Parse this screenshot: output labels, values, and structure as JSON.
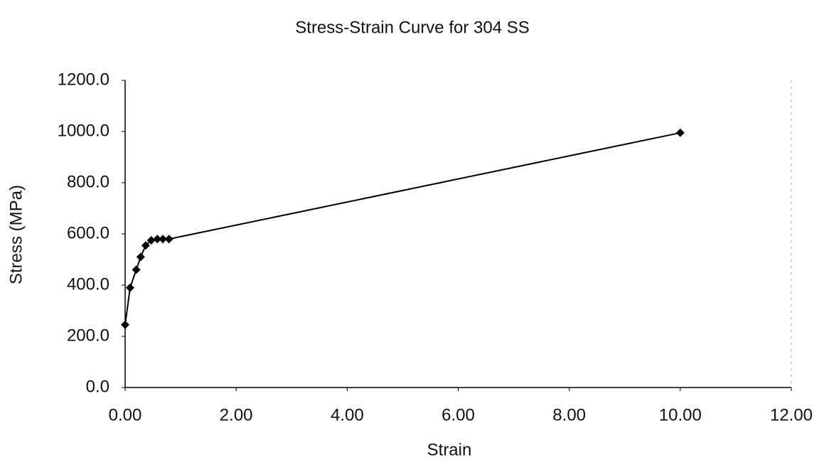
{
  "chart_data": {
    "type": "scatter",
    "title": "Stress-Strain Curve for 304 SS",
    "x_label": "Strain",
    "y_label": "Stress (MPa)",
    "series": [
      {
        "color": "#000000",
        "x": [
          0,
          0.09,
          0.2,
          0.28,
          0.37,
          0.47,
          0.58,
          0.68,
          0.79,
          10.0
        ],
        "values": [
          245,
          390,
          460,
          510,
          555,
          575,
          580,
          580,
          580,
          995
        ]
      }
    ],
    "xlim": [
      0,
      12
    ],
    "xticks": [
      {
        "value": 0,
        "label": "0.00"
      },
      {
        "value": 2,
        "label": "2.00"
      },
      {
        "value": 4,
        "label": "4.00"
      },
      {
        "value": 6,
        "label": "6.00"
      },
      {
        "value": 8,
        "label": "8.00"
      },
      {
        "value": 10,
        "label": "10.00"
      },
      {
        "value": 12,
        "label": "12.00"
      }
    ],
    "ylim": [
      0,
      1200
    ],
    "yticks": [
      {
        "value": 0,
        "label": "0.0"
      },
      {
        "value": 200,
        "label": "200.0"
      },
      {
        "value": 400,
        "label": "400.0"
      },
      {
        "value": 600,
        "label": "600.0"
      },
      {
        "value": 800,
        "label": "800.0"
      },
      {
        "value": 1000,
        "label": "1000.0"
      },
      {
        "value": 1200,
        "label": "1200.0"
      }
    ],
    "grid": false
  }
}
